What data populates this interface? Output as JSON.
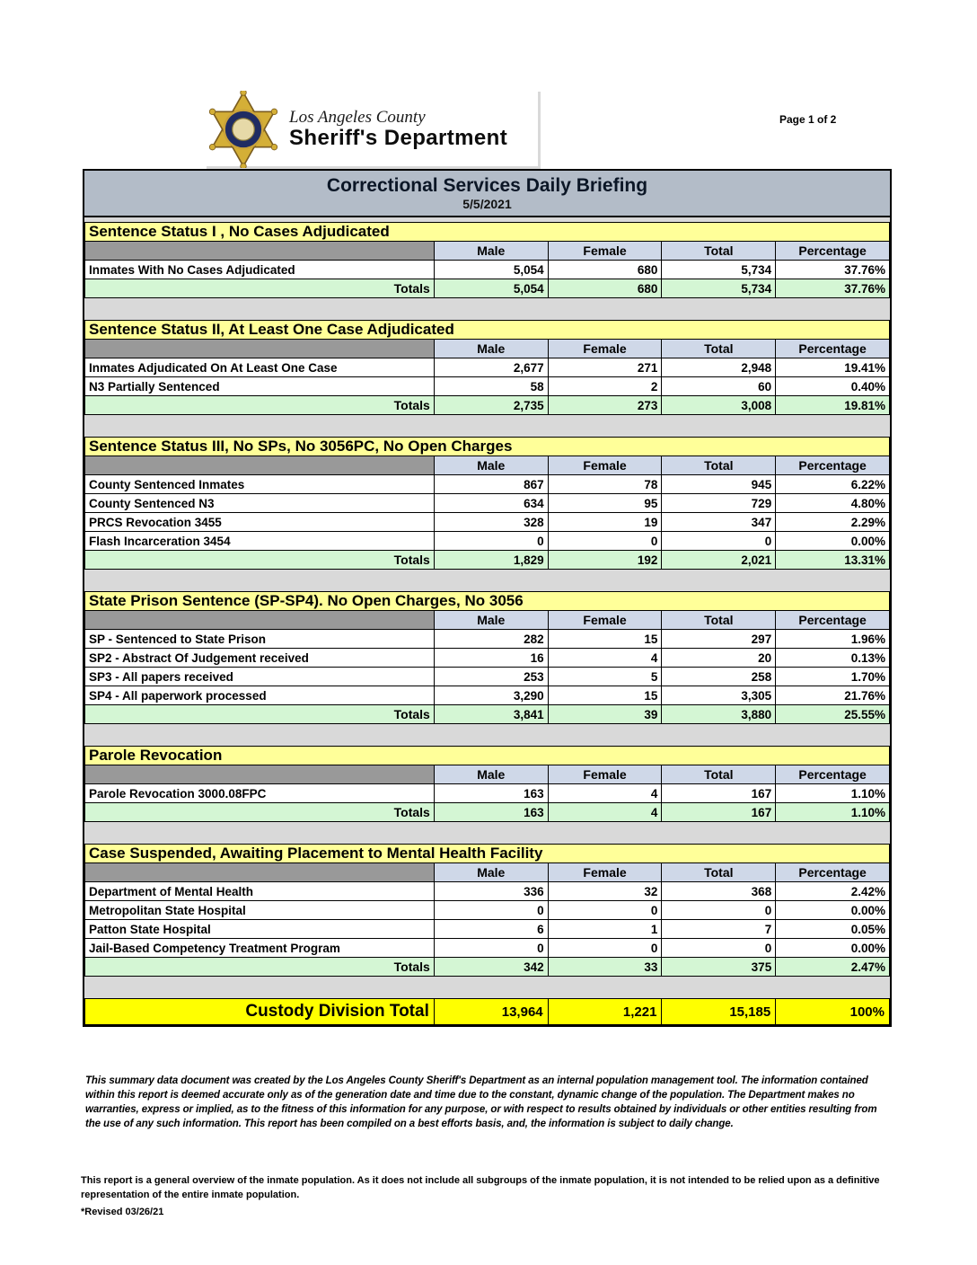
{
  "page": {
    "page_indicator": "Page 1 of 2",
    "logo": {
      "agency_line1": "Los Angeles County",
      "agency_line2": "Sheriff's Department",
      "badge_icon": "sheriff-star-badge"
    }
  },
  "report": {
    "title": "Correctional Services Daily Briefing",
    "date": "5/5/2021",
    "columns": [
      "Male",
      "Female",
      "Total",
      "Percentage"
    ],
    "totals_label": "Totals",
    "sections": [
      {
        "header": "Sentence Status I , No Cases Adjudicated",
        "rows": [
          {
            "label": "Inmates With No Cases Adjudicated",
            "male": "5,054",
            "female": "680",
            "total": "5,734",
            "percentage": "37.76%"
          }
        ],
        "totals": {
          "male": "5,054",
          "female": "680",
          "total": "5,734",
          "percentage": "37.76%"
        }
      },
      {
        "header": "Sentence Status II, At Least One Case Adjudicated",
        "rows": [
          {
            "label": "Inmates Adjudicated On At Least One Case",
            "male": "2,677",
            "female": "271",
            "total": "2,948",
            "percentage": "19.41%"
          },
          {
            "label": "N3 Partially Sentenced",
            "male": "58",
            "female": "2",
            "total": "60",
            "percentage": "0.40%"
          }
        ],
        "totals": {
          "male": "2,735",
          "female": "273",
          "total": "3,008",
          "percentage": "19.81%"
        }
      },
      {
        "header": "Sentence Status III, No SPs, No 3056PC, No Open Charges",
        "rows": [
          {
            "label": "County Sentenced Inmates",
            "male": "867",
            "female": "78",
            "total": "945",
            "percentage": "6.22%"
          },
          {
            "label": "County Sentenced N3",
            "male": "634",
            "female": "95",
            "total": "729",
            "percentage": "4.80%"
          },
          {
            "label": "PRCS Revocation 3455",
            "male": "328",
            "female": "19",
            "total": "347",
            "percentage": "2.29%"
          },
          {
            "label": "Flash Incarceration 3454",
            "male": "0",
            "female": "0",
            "total": "0",
            "percentage": "0.00%"
          }
        ],
        "totals": {
          "male": "1,829",
          "female": "192",
          "total": "2,021",
          "percentage": "13.31%"
        }
      },
      {
        "header": "State Prison Sentence (SP-SP4). No Open Charges, No 3056",
        "rows": [
          {
            "label": "SP - Sentenced to State Prison",
            "male": "282",
            "female": "15",
            "total": "297",
            "percentage": "1.96%"
          },
          {
            "label": "SP2 - Abstract Of Judgement received",
            "male": "16",
            "female": "4",
            "total": "20",
            "percentage": "0.13%"
          },
          {
            "label": "SP3 - All papers received",
            "male": "253",
            "female": "5",
            "total": "258",
            "percentage": "1.70%"
          },
          {
            "label": "SP4 - All paperwork processed",
            "male": "3,290",
            "female": "15",
            "total": "3,305",
            "percentage": "21.76%"
          }
        ],
        "totals": {
          "male": "3,841",
          "female": "39",
          "total": "3,880",
          "percentage": "25.55%"
        }
      },
      {
        "header": "Parole Revocation",
        "rows": [
          {
            "label": "Parole Revocation 3000.08FPC",
            "male": "163",
            "female": "4",
            "total": "167",
            "percentage": "1.10%"
          }
        ],
        "totals": {
          "male": "163",
          "female": "4",
          "total": "167",
          "percentage": "1.10%"
        }
      },
      {
        "header": "Case Suspended, Awaiting Placement to Mental Health Facility",
        "rows": [
          {
            "label": "Department of Mental Health",
            "male": "336",
            "female": "32",
            "total": "368",
            "percentage": "2.42%"
          },
          {
            "label": "Metropolitan State Hospital",
            "male": "0",
            "female": "0",
            "total": "0",
            "percentage": "0.00%"
          },
          {
            "label": "Patton State Hospital",
            "male": "6",
            "female": "1",
            "total": "7",
            "percentage": "0.05%"
          },
          {
            "label": "Jail-Based Competency Treatment Program",
            "male": "0",
            "female": "0",
            "total": "0",
            "percentage": "0.00%"
          }
        ],
        "totals": {
          "male": "342",
          "female": "33",
          "total": "375",
          "percentage": "2.47%"
        }
      }
    ],
    "grand_total": {
      "label": "Custody Division Total",
      "male": "13,964",
      "female": "1,221",
      "total": "15,185",
      "percentage": "100%"
    }
  },
  "footnotes": {
    "disclaimer": "This summary data document was created by the Los Angeles County Sheriff's Department as an internal population management tool.  The information contained within this report is deemed accurate only as of the generation date and time due to the constant, dynamic change of the population.  The Department makes no warranties, express or implied, as to the fitness of this information for any purpose, or with respect to results obtained by individuals or other entities resulting from the use of any such information.  This report has been compiled on a best efforts basis, and, the information is subject to daily change.",
    "overview_note": "This report is a general overview of the inmate population.  As it does not include all subgroups of the inmate population, it is not intended to be relied upon as a definitive representation of the entire inmate population.",
    "revised": "*Revised 03/26/21"
  },
  "colors": {
    "section_header_bg": "#ffff99",
    "column_header_bg": "#cfd8e8",
    "totals_row_bg": "#d4f6d4",
    "grand_total_bg": "#ffff00",
    "title_bar_bg": "#b3bcc8",
    "empty_cell_bg": "#999999",
    "gap_bg": "#d9d9d9"
  }
}
